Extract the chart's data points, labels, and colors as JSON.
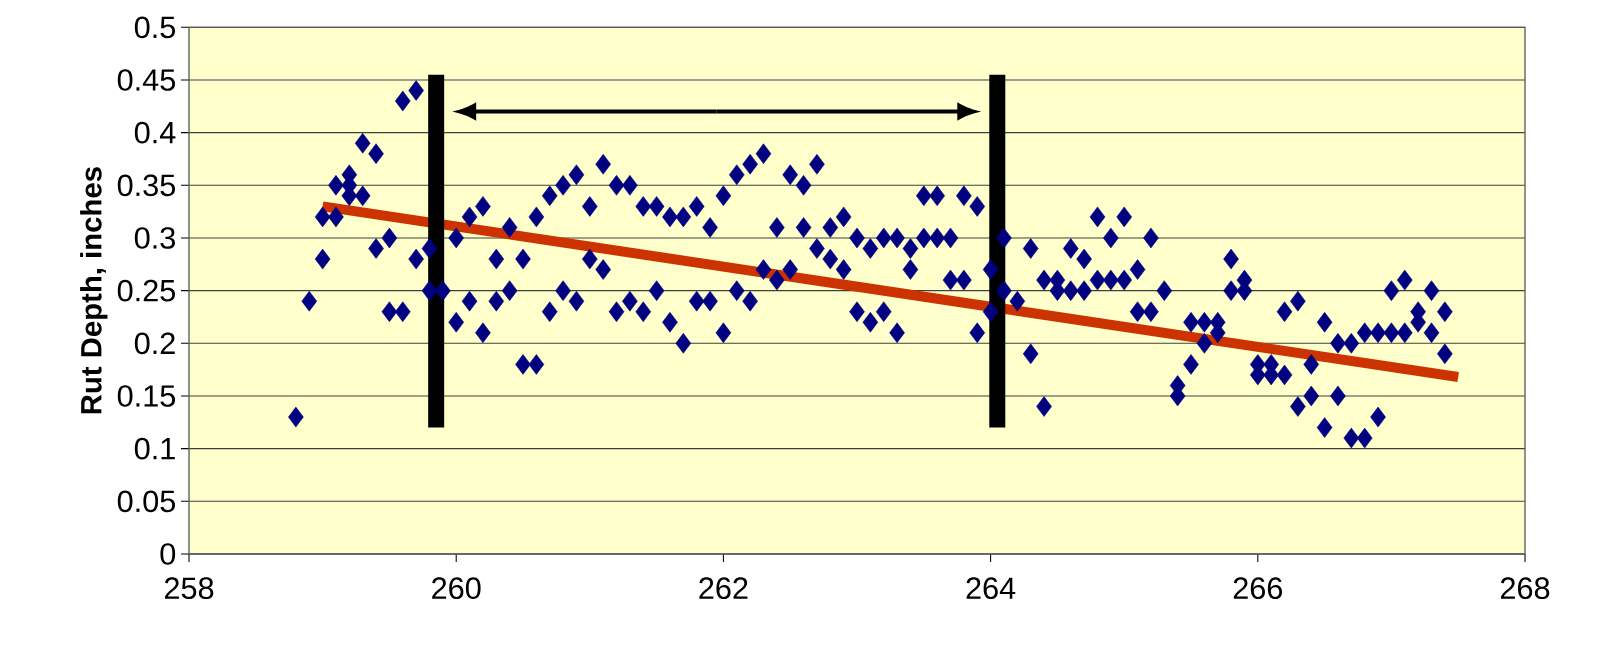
{
  "chart_data": {
    "type": "scatter",
    "ylabel": "Rut Depth, inches",
    "xlim": [
      258,
      268
    ],
    "ylim": [
      0,
      0.5
    ],
    "xticks": [
      258,
      260,
      262,
      264,
      266,
      268
    ],
    "yticks": [
      0,
      0.05,
      0.1,
      0.15,
      0.2,
      0.25,
      0.3,
      0.35,
      0.4,
      0.45,
      0.5
    ],
    "grid": "y",
    "marker": "diamond",
    "series": [
      {
        "color": "#000080",
        "x": [
          258.8,
          258.9,
          259.0,
          259.0,
          259.1,
          259.1,
          259.2,
          259.2,
          259.2,
          259.3,
          259.3,
          259.4,
          259.4,
          259.5,
          259.5,
          259.6,
          259.6,
          259.7,
          259.7,
          259.8,
          259.8,
          259.9,
          260.0,
          260.0,
          260.1,
          260.1,
          260.2,
          260.2,
          260.3,
          260.3,
          260.4,
          260.4,
          260.5,
          260.5,
          260.6,
          260.6,
          260.7,
          260.7,
          260.8,
          260.8,
          260.9,
          260.9,
          261.0,
          261.0,
          261.1,
          261.1,
          261.2,
          261.2,
          261.3,
          261.3,
          261.4,
          261.4,
          261.5,
          261.5,
          261.6,
          261.6,
          261.7,
          261.7,
          261.8,
          261.8,
          261.9,
          261.9,
          262.0,
          262.0,
          262.1,
          262.1,
          262.2,
          262.2,
          262.3,
          262.3,
          262.4,
          262.4,
          262.5,
          262.5,
          262.6,
          262.6,
          262.7,
          262.7,
          262.8,
          262.8,
          262.9,
          262.9,
          263.0,
          263.0,
          263.1,
          263.1,
          263.2,
          263.2,
          263.3,
          263.3,
          263.4,
          263.4,
          263.5,
          263.5,
          263.6,
          263.6,
          263.7,
          263.7,
          263.8,
          263.8,
          263.9,
          263.9,
          264.0,
          264.0,
          264.1,
          264.1,
          264.2,
          264.3,
          264.3,
          264.4,
          264.4,
          264.5,
          264.5,
          264.6,
          264.6,
          264.7,
          264.7,
          264.8,
          264.8,
          264.9,
          264.9,
          265.0,
          265.0,
          265.1,
          265.1,
          265.2,
          265.2,
          265.3,
          265.4,
          265.4,
          265.5,
          265.5,
          265.6,
          265.6,
          265.7,
          265.7,
          265.8,
          265.8,
          265.9,
          265.9,
          266.0,
          266.0,
          266.1,
          266.1,
          266.2,
          266.2,
          266.3,
          266.3,
          266.4,
          266.4,
          266.5,
          266.5,
          266.6,
          266.6,
          266.7,
          266.7,
          266.8,
          266.8,
          266.9,
          266.9,
          267.0,
          267.0,
          267.1,
          267.1,
          267.2,
          267.2,
          267.3,
          267.3,
          267.4,
          267.4
        ],
        "values": [
          0.13,
          0.24,
          0.28,
          0.32,
          0.32,
          0.35,
          0.35,
          0.34,
          0.36,
          0.34,
          0.39,
          0.38,
          0.29,
          0.3,
          0.23,
          0.23,
          0.43,
          0.44,
          0.28,
          0.29,
          0.25,
          0.25,
          0.3,
          0.22,
          0.32,
          0.24,
          0.33,
          0.21,
          0.28,
          0.24,
          0.31,
          0.25,
          0.28,
          0.18,
          0.32,
          0.18,
          0.34,
          0.23,
          0.35,
          0.25,
          0.36,
          0.24,
          0.33,
          0.28,
          0.37,
          0.27,
          0.35,
          0.23,
          0.35,
          0.24,
          0.33,
          0.23,
          0.33,
          0.25,
          0.32,
          0.22,
          0.32,
          0.2,
          0.33,
          0.24,
          0.31,
          0.24,
          0.34,
          0.21,
          0.36,
          0.25,
          0.37,
          0.24,
          0.38,
          0.27,
          0.31,
          0.26,
          0.36,
          0.27,
          0.35,
          0.31,
          0.37,
          0.29,
          0.31,
          0.28,
          0.32,
          0.27,
          0.3,
          0.23,
          0.29,
          0.22,
          0.3,
          0.23,
          0.3,
          0.21,
          0.29,
          0.27,
          0.3,
          0.34,
          0.34,
          0.3,
          0.3,
          0.26,
          0.34,
          0.26,
          0.33,
          0.21,
          0.27,
          0.23,
          0.3,
          0.25,
          0.24,
          0.29,
          0.19,
          0.26,
          0.14,
          0.26,
          0.25,
          0.29,
          0.25,
          0.28,
          0.25,
          0.32,
          0.26,
          0.3,
          0.26,
          0.32,
          0.26,
          0.27,
          0.23,
          0.3,
          0.23,
          0.25,
          0.16,
          0.15,
          0.22,
          0.18,
          0.22,
          0.2,
          0.22,
          0.21,
          0.28,
          0.25,
          0.26,
          0.25,
          0.18,
          0.17,
          0.18,
          0.17,
          0.23,
          0.17,
          0.24,
          0.14,
          0.18,
          0.15,
          0.22,
          0.12,
          0.2,
          0.15,
          0.2,
          0.11,
          0.21,
          0.11,
          0.21,
          0.13,
          0.25,
          0.21,
          0.26,
          0.21,
          0.23,
          0.22,
          0.25,
          0.21,
          0.23,
          0.19
        ]
      },
      {
        "type": "line",
        "marker": "none",
        "color": "#cc3300",
        "x": [
          259.0,
          267.5
        ],
        "values": [
          0.33,
          0.168
        ]
      }
    ],
    "ref_lines": [
      {
        "axis": "x",
        "value": 259.85,
        "color": "#000000"
      },
      {
        "axis": "x",
        "value": 264.05,
        "color": "#000000"
      }
    ]
  }
}
